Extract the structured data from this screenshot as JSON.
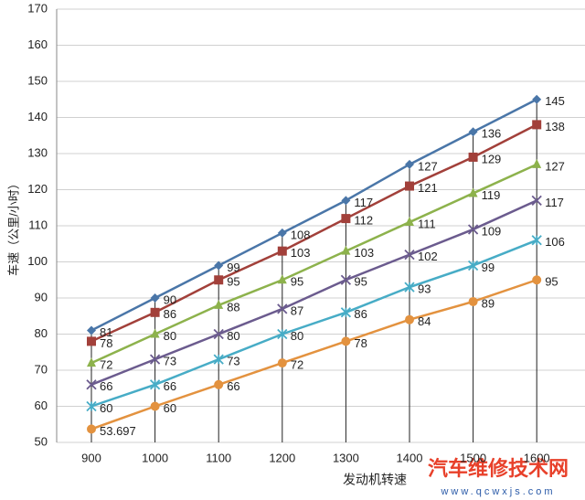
{
  "chart_data": {
    "type": "line",
    "y_label": "车速（公里/小时）",
    "x_label": "发动机转速",
    "categories": [
      "900",
      "1000",
      "1100",
      "1200",
      "1300",
      "1400",
      "1500",
      "1600"
    ],
    "ylim": [
      50,
      170
    ],
    "yticks": [
      50,
      60,
      70,
      80,
      90,
      100,
      110,
      120,
      130,
      140,
      150,
      160,
      170
    ],
    "grid": true,
    "drop_lines": true,
    "series": [
      {
        "color": "#4a76a8",
        "marker": "diamond",
        "values": [
          81,
          90,
          99,
          108,
          117,
          127,
          136,
          145
        ]
      },
      {
        "color": "#a2403a",
        "marker": "square",
        "values": [
          78,
          86,
          95,
          103,
          112,
          121,
          129,
          138
        ]
      },
      {
        "color": "#8db24c",
        "marker": "triangle",
        "values": [
          72,
          80,
          88,
          95,
          103,
          111,
          119,
          127
        ]
      },
      {
        "color": "#6b5b8e",
        "marker": "x",
        "values": [
          66,
          73,
          80,
          87,
          95,
          102,
          109,
          117
        ]
      },
      {
        "color": "#47acc6",
        "marker": "star",
        "values": [
          60,
          66,
          73,
          80,
          86,
          93,
          99,
          106
        ]
      },
      {
        "color": "#e3923f",
        "marker": "circle",
        "values": [
          53.697,
          60,
          66,
          72,
          78,
          84,
          89,
          95
        ]
      }
    ],
    "watermark": {
      "title": "汽车维修技术网",
      "url": "www.qcwxjs.com"
    }
  }
}
